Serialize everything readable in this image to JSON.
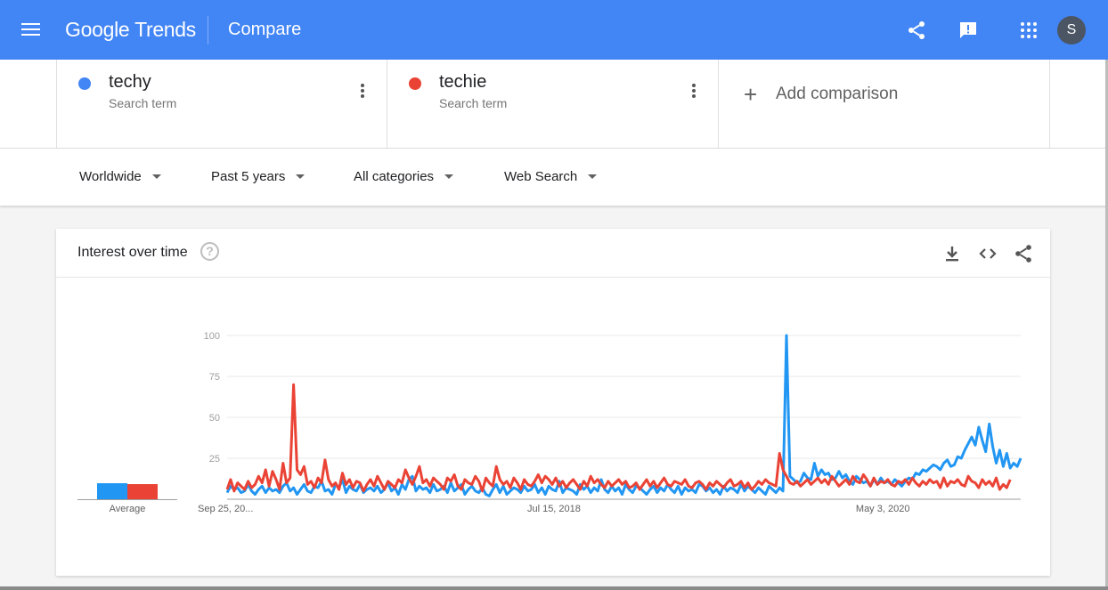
{
  "header": {
    "logo_google": "Google",
    "logo_trends": "Trends",
    "page_title": "Compare",
    "avatar_initial": "S",
    "accent": "#4285f4"
  },
  "terms": [
    {
      "name": "techy",
      "sub": "Search term",
      "color": "#4285f4"
    },
    {
      "name": "techie",
      "sub": "Search term",
      "color": "#ea4335"
    }
  ],
  "add_comparison": {
    "plus": "+",
    "label": "Add comparison"
  },
  "filters": {
    "region": "Worldwide",
    "time": "Past 5 years",
    "category": "All categories",
    "search_type": "Web Search"
  },
  "card": {
    "title": "Interest over time",
    "help": "?",
    "average_label": "Average"
  },
  "chart_data": {
    "type": "line",
    "ylim": [
      0,
      100
    ],
    "y_ticks": [
      "100",
      "75",
      "50",
      "25"
    ],
    "x_tick_labels": [
      "Sep 25, 20...",
      "Jul 15, 2018",
      "May 3, 2020"
    ],
    "x_tick_indices": [
      0,
      94,
      188
    ],
    "series": [
      {
        "name": "techy",
        "color": "#2196f3",
        "average": 10,
        "values": [
          4,
          8,
          6,
          7,
          4,
          5,
          9,
          5,
          3,
          6,
          8,
          4,
          7,
          5,
          6,
          4,
          8,
          10,
          5,
          7,
          3,
          6,
          9,
          5,
          4,
          8,
          7,
          11,
          5,
          6,
          3,
          9,
          7,
          12,
          4,
          8,
          6,
          5,
          9,
          4,
          6,
          7,
          5,
          8,
          4,
          6,
          10,
          5,
          7,
          3,
          9,
          6,
          12,
          14,
          5,
          8,
          6,
          7,
          4,
          9,
          5,
          6,
          8,
          4,
          10,
          5,
          7,
          9,
          3,
          6,
          8,
          5,
          4,
          7,
          3,
          2,
          6,
          9,
          4,
          8,
          3,
          5,
          7,
          6,
          4,
          8,
          5,
          6,
          9,
          4,
          7,
          3,
          8,
          6,
          5,
          11,
          4,
          7,
          6,
          5,
          3,
          9,
          6,
          8,
          4,
          7,
          5,
          12,
          6,
          4,
          8,
          5,
          7,
          3,
          9,
          6,
          4,
          8,
          7,
          5,
          3,
          6,
          8,
          4,
          7,
          5,
          9,
          6,
          4,
          8,
          3,
          7,
          5,
          6,
          4,
          9,
          8,
          5,
          7,
          4,
          6,
          3,
          8,
          5,
          7,
          6,
          4,
          9,
          5,
          8,
          6,
          4,
          7,
          5,
          3,
          8,
          6,
          4,
          7,
          5,
          100,
          14,
          12,
          10,
          11,
          16,
          13,
          12,
          22,
          14,
          18,
          15,
          16,
          12,
          13,
          17,
          13,
          15,
          11,
          9,
          14,
          12,
          10,
          11,
          8,
          12,
          9,
          13,
          10,
          11,
          9,
          12,
          10,
          8,
          11,
          13,
          12,
          16,
          15,
          18,
          17,
          19,
          21,
          20,
          18,
          22,
          24,
          20,
          21,
          26,
          25,
          30,
          34,
          38,
          33,
          44,
          36,
          29,
          46,
          32,
          22,
          30,
          20,
          28,
          19,
          22,
          20,
          25
        ]
      },
      {
        "name": "techie",
        "color": "#ea4335",
        "average": 9,
        "values": [
          6,
          12,
          5,
          10,
          8,
          6,
          11,
          7,
          9,
          14,
          10,
          18,
          8,
          17,
          12,
          6,
          22,
          10,
          13,
          70,
          18,
          15,
          20,
          9,
          11,
          7,
          13,
          10,
          24,
          12,
          8,
          10,
          6,
          16,
          9,
          12,
          7,
          11,
          10,
          5,
          9,
          12,
          8,
          14,
          10,
          6,
          11,
          9,
          7,
          12,
          10,
          18,
          13,
          9,
          14,
          20,
          10,
          12,
          8,
          13,
          11,
          9,
          6,
          13,
          11,
          15,
          8,
          6,
          12,
          10,
          9,
          14,
          11,
          5,
          13,
          10,
          8,
          20,
          12,
          9,
          11,
          7,
          13,
          10,
          6,
          12,
          9,
          8,
          11,
          15,
          10,
          14,
          12,
          9,
          13,
          8,
          11,
          7,
          10,
          12,
          9,
          6,
          11,
          8,
          14,
          10,
          12,
          9,
          7,
          11,
          8,
          10,
          12,
          9,
          11,
          7,
          8,
          10,
          6,
          9,
          12,
          8,
          11,
          7,
          10,
          13,
          9,
          8,
          11,
          10,
          9,
          12,
          8,
          7,
          10,
          11,
          9,
          6,
          10,
          8,
          11,
          9,
          7,
          10,
          12,
          8,
          9,
          11,
          7,
          10,
          6,
          8,
          11,
          9,
          12,
          10,
          9,
          8,
          28,
          18,
          14,
          10,
          9,
          11,
          8,
          10,
          12,
          9,
          11,
          13,
          10,
          12,
          9,
          14,
          11,
          8,
          10,
          12,
          9,
          14,
          11,
          10,
          15,
          12,
          8,
          13,
          9,
          11,
          10,
          12,
          9,
          8,
          11,
          10,
          12,
          9,
          13,
          10,
          8,
          11,
          9,
          12,
          10,
          11,
          7,
          13,
          8,
          11,
          10,
          12,
          9,
          8,
          14,
          11,
          10,
          7,
          12,
          9,
          11,
          8,
          13,
          6,
          9,
          7,
          12
        ]
      }
    ]
  }
}
